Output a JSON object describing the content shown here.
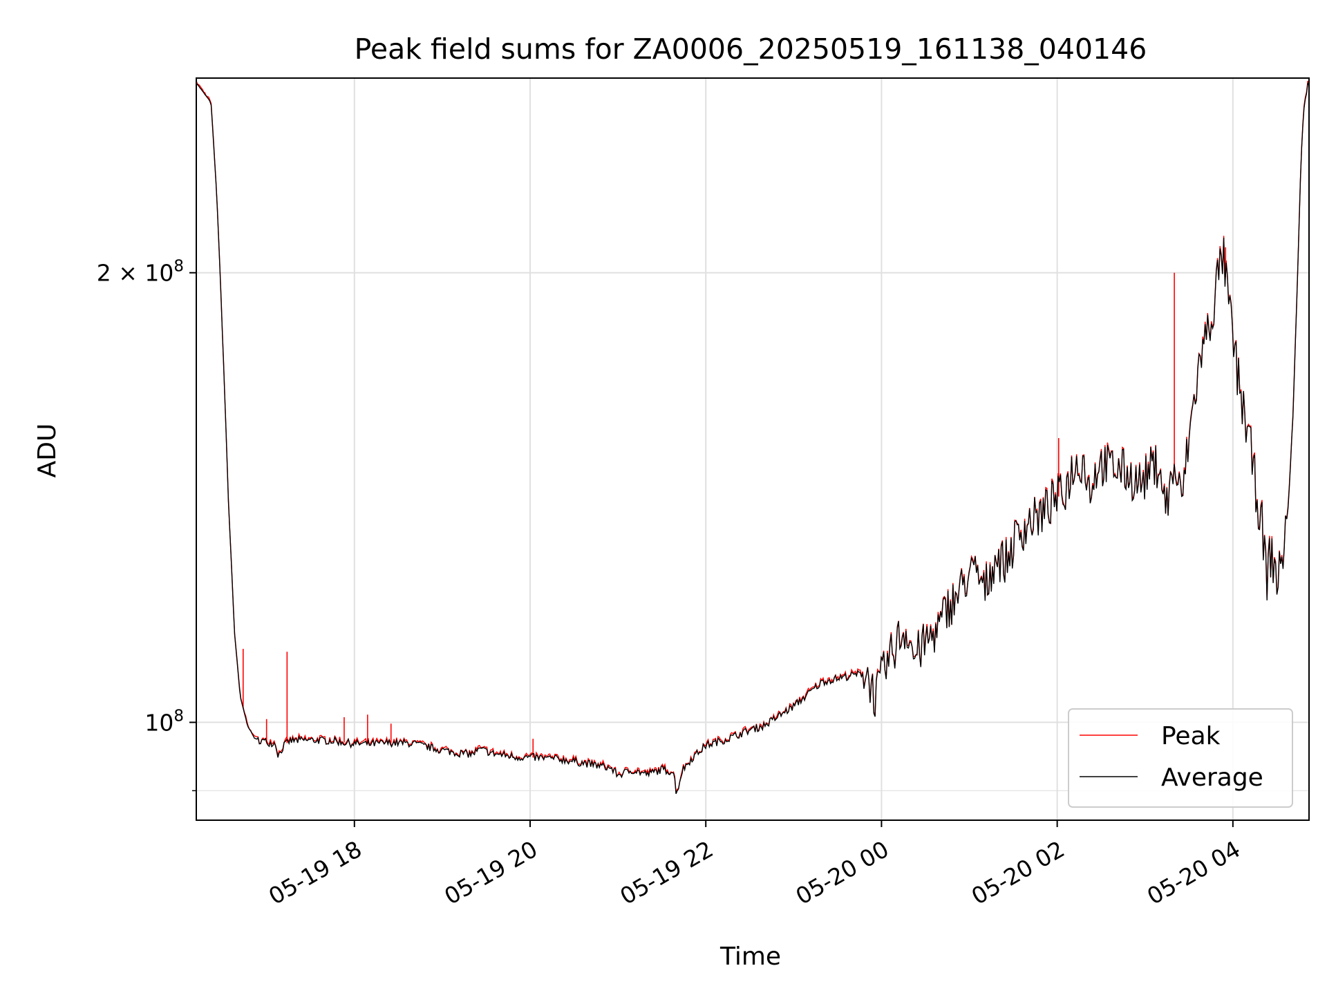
{
  "chart_data": {
    "type": "line",
    "title": "Peak field sums for ZA0006_20250519_161138_040146",
    "xlabel": "Time",
    "ylabel": "ADU",
    "y_scale": "log",
    "ylim": [
      86000000,
      270000000
    ],
    "xlim": [
      "2025-05-19 16:12",
      "2025-05-20 04:52"
    ],
    "grid": true,
    "legend_position": "lower right",
    "x_ticks": [
      {
        "t": "2025-05-19 18:00",
        "label": "05-19 18"
      },
      {
        "t": "2025-05-19 20:00",
        "label": "05-19 20"
      },
      {
        "t": "2025-05-19 22:00",
        "label": "05-19 22"
      },
      {
        "t": "2025-05-20 00:00",
        "label": "05-20 00"
      },
      {
        "t": "2025-05-20 02:00",
        "label": "05-20 02"
      },
      {
        "t": "2025-05-20 04:00",
        "label": "05-20 04"
      }
    ],
    "y_ticks": [
      {
        "value": 100000000,
        "base": "10",
        "exp": "8",
        "mult": ""
      },
      {
        "value": 200000000,
        "base": "10",
        "exp": "8",
        "mult": "2 × "
      }
    ],
    "colors": {
      "peak": "#ff0000",
      "average": "#000000",
      "grid": "#e0e0e0"
    },
    "series": [
      {
        "name": "Average",
        "color": "#000000",
        "points": [
          [
            "2025-05-19 16:12",
            268000000
          ],
          [
            "2025-05-19 16:22",
            260000000
          ],
          [
            "2025-05-19 16:26",
            225000000
          ],
          [
            "2025-05-19 16:30",
            180000000
          ],
          [
            "2025-05-19 16:34",
            140000000
          ],
          [
            "2025-05-19 16:38",
            115000000
          ],
          [
            "2025-05-19 16:42",
            104000000
          ],
          [
            "2025-05-19 16:47",
            99500000
          ],
          [
            "2025-05-19 16:52",
            97500000
          ],
          [
            "2025-05-19 17:00",
            97000000
          ],
          [
            "2025-05-19 17:06",
            96800000
          ],
          [
            "2025-05-19 17:08",
            95000000
          ],
          [
            "2025-05-19 17:12",
            96500000
          ],
          [
            "2025-05-19 17:16",
            97200000
          ],
          [
            "2025-05-19 17:30",
            97300000
          ],
          [
            "2025-05-19 17:45",
            97200000
          ],
          [
            "2025-05-19 17:58",
            96800000
          ],
          [
            "2025-05-19 18:10",
            96700000
          ],
          [
            "2025-05-19 18:25",
            96900000
          ],
          [
            "2025-05-19 18:40",
            96800000
          ],
          [
            "2025-05-19 18:55",
            96000000
          ],
          [
            "2025-05-19 19:10",
            95400000
          ],
          [
            "2025-05-19 19:20",
            95200000
          ],
          [
            "2025-05-19 19:26",
            95900000
          ],
          [
            "2025-05-19 19:35",
            95300000
          ],
          [
            "2025-05-19 19:50",
            94800000
          ],
          [
            "2025-05-19 20:05",
            94700000
          ],
          [
            "2025-05-19 20:20",
            94500000
          ],
          [
            "2025-05-19 20:40",
            93800000
          ],
          [
            "2025-05-19 20:55",
            93200000
          ],
          [
            "2025-05-19 21:00",
            92200000
          ],
          [
            "2025-05-19 21:10",
            92900000
          ],
          [
            "2025-05-19 21:20",
            92300000
          ],
          [
            "2025-05-19 21:30",
            93000000
          ],
          [
            "2025-05-19 21:38",
            92600000
          ],
          [
            "2025-05-19 21:40",
            89500000
          ],
          [
            "2025-05-19 21:44",
            92900000
          ],
          [
            "2025-05-19 21:50",
            94500000
          ],
          [
            "2025-05-19 22:00",
            96500000
          ],
          [
            "2025-05-19 22:15",
            97500000
          ],
          [
            "2025-05-19 22:30",
            98800000
          ],
          [
            "2025-05-19 22:40",
            99500000
          ],
          [
            "2025-05-19 22:50",
            101000000
          ],
          [
            "2025-05-19 23:00",
            102500000
          ],
          [
            "2025-05-19 23:10",
            104500000
          ],
          [
            "2025-05-19 23:20",
            106500000
          ],
          [
            "2025-05-19 23:40",
            107500000
          ],
          [
            "2025-05-19 23:50",
            108000000
          ],
          [
            "2025-05-19 23:56",
            103800000
          ],
          [
            "2025-05-20 00:00",
            107000000
          ],
          [
            "2025-05-20 00:05",
            110000000
          ],
          [
            "2025-05-20 00:12",
            114000000
          ],
          [
            "2025-05-20 00:18",
            115500000
          ],
          [
            "2025-05-20 00:22",
            110500000
          ],
          [
            "2025-05-20 00:30",
            113000000
          ],
          [
            "2025-05-20 00:40",
            116000000
          ],
          [
            "2025-05-20 00:45",
            119500000
          ],
          [
            "2025-05-20 00:52",
            121500000
          ],
          [
            "2025-05-20 00:58",
            125000000
          ],
          [
            "2025-05-20 01:05",
            126000000
          ],
          [
            "2025-05-20 01:10",
            122500000
          ],
          [
            "2025-05-20 01:18",
            129000000
          ],
          [
            "2025-05-20 01:25",
            128000000
          ],
          [
            "2025-05-20 01:32",
            133000000
          ],
          [
            "2025-05-20 01:40",
            136000000
          ],
          [
            "2025-05-20 01:50",
            138000000
          ],
          [
            "2025-05-20 01:58",
            141000000
          ],
          [
            "2025-05-20 02:05",
            142500000
          ],
          [
            "2025-05-20 02:10",
            147500000
          ],
          [
            "2025-05-20 02:18",
            150000000
          ],
          [
            "2025-05-20 02:22",
            143000000
          ],
          [
            "2025-05-20 02:28",
            149000000
          ],
          [
            "2025-05-20 02:35",
            148500000
          ],
          [
            "2025-05-20 02:45",
            147500000
          ],
          [
            "2025-05-20 02:52",
            145500000
          ],
          [
            "2025-05-20 02:58",
            144500000
          ],
          [
            "2025-05-20 03:04",
            148000000
          ],
          [
            "2025-05-20 03:10",
            149000000
          ],
          [
            "2025-05-20 03:14",
            139000000
          ],
          [
            "2025-05-20 03:20",
            148000000
          ],
          [
            "2025-05-20 03:25",
            140500000
          ],
          [
            "2025-05-20 03:30",
            155000000
          ],
          [
            "2025-05-20 03:35",
            168000000
          ],
          [
            "2025-05-20 03:38",
            176000000
          ],
          [
            "2025-05-20 03:45",
            186000000
          ],
          [
            "2025-05-20 03:50",
            199000000
          ],
          [
            "2025-05-20 03:53",
            206000000
          ],
          [
            "2025-05-20 03:56",
            195000000
          ],
          [
            "2025-05-20 04:00",
            180000000
          ],
          [
            "2025-05-20 04:05",
            166000000
          ],
          [
            "2025-05-20 04:10",
            157000000
          ],
          [
            "2025-05-20 04:15",
            145000000
          ],
          [
            "2025-05-20 04:20",
            135000000
          ],
          [
            "2025-05-20 04:23",
            125000000
          ],
          [
            "2025-05-20 04:26",
            130000000
          ],
          [
            "2025-05-20 04:31",
            124000000
          ],
          [
            "2025-05-20 04:34",
            130000000
          ],
          [
            "2025-05-20 04:38",
            140000000
          ],
          [
            "2025-05-20 04:41",
            160000000
          ],
          [
            "2025-05-20 04:44",
            195000000
          ],
          [
            "2025-05-20 04:46",
            230000000
          ],
          [
            "2025-05-20 04:48",
            255000000
          ],
          [
            "2025-05-20 04:51",
            267000000
          ],
          [
            "2025-05-20 04:52",
            267000000
          ]
        ]
      },
      {
        "name": "Peak",
        "color": "#ff0000",
        "spikes": [
          {
            "t": "2025-05-19 16:44",
            "value": 112000000
          },
          {
            "t": "2025-05-19 17:00",
            "value": 100500000
          },
          {
            "t": "2025-05-19 17:14",
            "value": 111500000
          },
          {
            "t": "2025-05-19 17:53",
            "value": 100800000
          },
          {
            "t": "2025-05-19 18:09",
            "value": 101200000
          },
          {
            "t": "2025-05-19 18:25",
            "value": 99800000
          },
          {
            "t": "2025-05-19 20:02",
            "value": 97500000
          },
          {
            "t": "2025-05-20 02:01",
            "value": 155000000
          },
          {
            "t": "2025-05-20 03:20",
            "value": 200000000
          },
          {
            "t": "2025-05-20 03:55",
            "value": 208000000
          }
        ]
      }
    ]
  }
}
